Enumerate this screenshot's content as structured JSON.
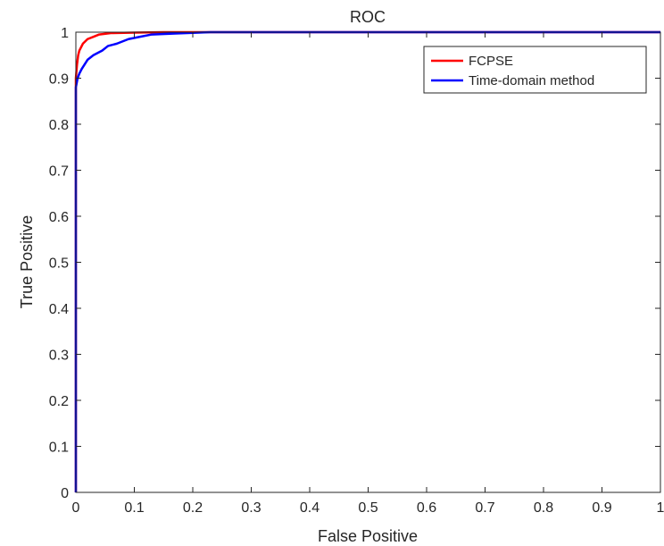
{
  "chart_data": {
    "type": "line",
    "title": "ROC",
    "xlabel": "False Positive",
    "ylabel": "True Positive",
    "xlim": [
      0,
      1
    ],
    "ylim": [
      0,
      1
    ],
    "grid": false,
    "legend_position": "top-right",
    "x_ticks": [
      "0",
      "0.1",
      "0.2",
      "0.3",
      "0.4",
      "0.5",
      "0.6",
      "0.7",
      "0.8",
      "0.9",
      "1"
    ],
    "y_ticks": [
      "0",
      "0.1",
      "0.2",
      "0.3",
      "0.4",
      "0.5",
      "0.6",
      "0.7",
      "0.8",
      "0.9",
      "1"
    ],
    "series": [
      {
        "name": "FCPSE",
        "color": "#ff0000",
        "points": [
          [
            0,
            0
          ],
          [
            0,
            0.9
          ],
          [
            0.002,
            0.93
          ],
          [
            0.004,
            0.95
          ],
          [
            0.006,
            0.96
          ],
          [
            0.008,
            0.965
          ],
          [
            0.012,
            0.975
          ],
          [
            0.02,
            0.985
          ],
          [
            0.03,
            0.99
          ],
          [
            0.04,
            0.995
          ],
          [
            0.06,
            0.998
          ],
          [
            0.1,
            0.999
          ],
          [
            0.15,
            1.0
          ],
          [
            1,
            1.0
          ]
        ]
      },
      {
        "name": "Time-domain method",
        "color": "#0000ff",
        "points": [
          [
            0,
            0
          ],
          [
            0,
            0.88
          ],
          [
            0.003,
            0.9
          ],
          [
            0.006,
            0.91
          ],
          [
            0.01,
            0.92
          ],
          [
            0.015,
            0.93
          ],
          [
            0.02,
            0.94
          ],
          [
            0.03,
            0.95
          ],
          [
            0.045,
            0.96
          ],
          [
            0.055,
            0.97
          ],
          [
            0.07,
            0.975
          ],
          [
            0.09,
            0.985
          ],
          [
            0.11,
            0.99
          ],
          [
            0.13,
            0.995
          ],
          [
            0.17,
            0.997
          ],
          [
            0.23,
            1.0
          ],
          [
            1,
            1.0
          ]
        ]
      }
    ]
  }
}
